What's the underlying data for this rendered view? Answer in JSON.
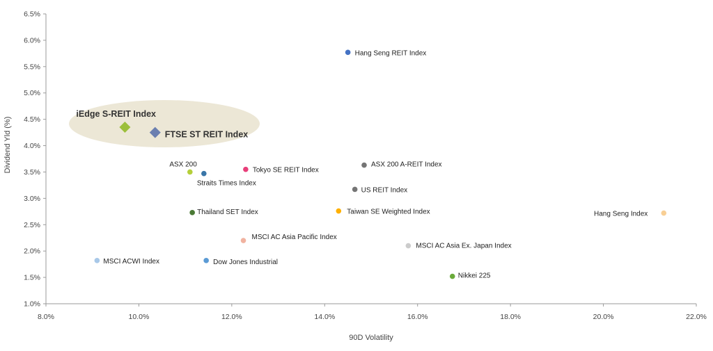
{
  "chart_data": {
    "type": "scatter",
    "title": "",
    "xlabel": "90D Volatility",
    "ylabel": "Dividend Yld (%)",
    "xlim": [
      8.0,
      22.0
    ],
    "ylim": [
      1.0,
      6.5
    ],
    "x_ticks": [
      "8.0%",
      "10.0%",
      "12.0%",
      "14.0%",
      "16.0%",
      "18.0%",
      "20.0%",
      "22.0%"
    ],
    "y_ticks": [
      "1.0%",
      "1.5%",
      "2.0%",
      "2.5%",
      "3.0%",
      "3.5%",
      "4.0%",
      "4.5%",
      "5.0%",
      "5.5%",
      "6.0%",
      "6.5%"
    ],
    "grid": false,
    "legend": "none",
    "highlight_color": "#ece7d6",
    "points": [
      {
        "name": "iEdge S-REIT Index",
        "x": 9.7,
        "y": 4.35,
        "color": "#9cbf3a",
        "marker": "diamond",
        "highlight": true
      },
      {
        "name": "FTSE ST REIT Index",
        "x": 10.35,
        "y": 4.25,
        "color": "#6b7fb0",
        "marker": "diamond",
        "highlight": true
      },
      {
        "name": "Hang Seng REIT Index",
        "x": 14.5,
        "y": 5.77,
        "color": "#4472c4",
        "marker": "circle"
      },
      {
        "name": "ASX 200",
        "x": 11.1,
        "y": 3.5,
        "color": "#b5cf3a",
        "marker": "circle"
      },
      {
        "name": "Straits Times Index",
        "x": 11.4,
        "y": 3.47,
        "color": "#3a76a8",
        "marker": "circle"
      },
      {
        "name": "Tokyo SE REIT Index",
        "x": 12.3,
        "y": 3.55,
        "color": "#e83f7a",
        "marker": "circle"
      },
      {
        "name": "ASX 200 A-REIT Index",
        "x": 14.85,
        "y": 3.63,
        "color": "#757575",
        "marker": "circle"
      },
      {
        "name": "US REIT Index",
        "x": 14.65,
        "y": 3.17,
        "color": "#757575",
        "marker": "circle"
      },
      {
        "name": "Thailand SET Index",
        "x": 11.15,
        "y": 2.73,
        "color": "#4a7a35",
        "marker": "circle"
      },
      {
        "name": "Taiwan SE Weighted Index",
        "x": 14.3,
        "y": 2.76,
        "color": "#ffb000",
        "marker": "circle"
      },
      {
        "name": "Hang Seng Index",
        "x": 21.3,
        "y": 2.72,
        "color": "#f8cf95",
        "marker": "circle"
      },
      {
        "name": "MSCI AC Asia Pacific Index",
        "x": 12.25,
        "y": 2.2,
        "color": "#f1b3a0",
        "marker": "circle"
      },
      {
        "name": "MSCI AC Asia Ex. Japan Index",
        "x": 15.8,
        "y": 2.1,
        "color": "#cccccc",
        "marker": "circle"
      },
      {
        "name": "MSCI ACWI Index",
        "x": 9.1,
        "y": 1.82,
        "color": "#a8c8e8",
        "marker": "circle"
      },
      {
        "name": "Dow Jones Industrial",
        "x": 11.45,
        "y": 1.82,
        "color": "#5b9bd5",
        "marker": "circle"
      },
      {
        "name": "Nikkei 225",
        "x": 16.75,
        "y": 1.52,
        "color": "#6aaa3a",
        "marker": "circle"
      }
    ]
  }
}
